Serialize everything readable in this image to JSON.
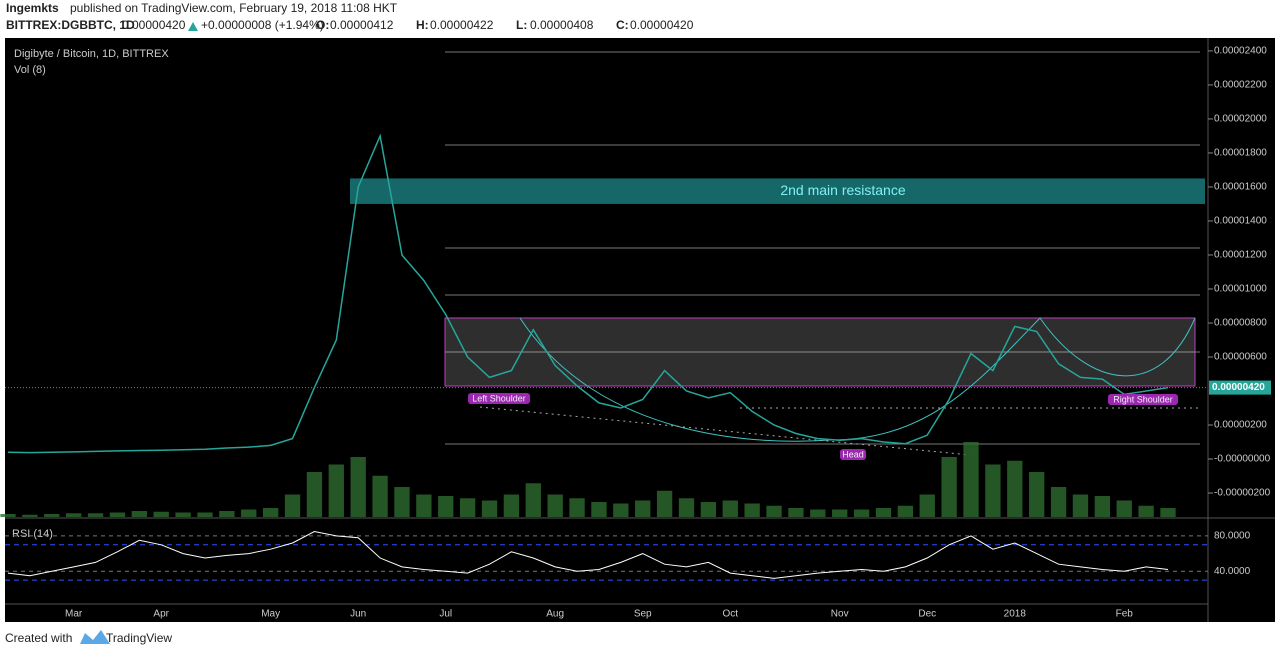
{
  "header": {
    "author": "Ingemkts",
    "published": "published on TradingView.com, February 19, 2018 11:08 HKT",
    "symbol": "BITTREX:DGBBTC, 1D",
    "last": "0.00000420",
    "change": "+0.00000008 (+1.94%)",
    "ohlc": [
      {
        "label": "O:",
        "value": "0.00000412"
      },
      {
        "label": "H:",
        "value": "0.00000422"
      },
      {
        "label": "L:",
        "value": "0.00000408"
      },
      {
        "label": "C:",
        "value": "0.00000420"
      }
    ]
  },
  "chart_data": {
    "type": "line",
    "title": "Digibyte / Bitcoin, 1D, BITTREX",
    "color": "#26a69a",
    "categories": [
      null,
      null,
      null,
      "Mar",
      null,
      null,
      null,
      "Apr",
      null,
      null,
      null,
      null,
      "May",
      null,
      null,
      null,
      "Jun",
      null,
      null,
      null,
      "Jul",
      null,
      null,
      null,
      null,
      "Aug",
      null,
      null,
      null,
      "Sep",
      null,
      null,
      null,
      "Oct",
      null,
      null,
      null,
      null,
      "Nov",
      null,
      null,
      null,
      "Dec",
      null,
      null,
      null,
      "2018",
      null,
      null,
      null,
      null,
      "Feb",
      null,
      null
    ],
    "values": [
      4e-07,
      3.8e-07,
      4e-07,
      4.2e-07,
      4.5e-07,
      4.8e-07,
      5e-07,
      5.2e-07,
      5.5e-07,
      5.8e-07,
      6.5e-07,
      7e-07,
      8e-07,
      1.2e-06,
      4.2e-06,
      7e-06,
      1.6e-05,
      1.9e-05,
      1.2e-05,
      1.05e-05,
      8.5e-06,
      6e-06,
      4.8e-06,
      5.2e-06,
      7.6e-06,
      5.5e-06,
      4.3e-06,
      3.3e-06,
      3e-06,
      3.5e-06,
      5.2e-06,
      4e-06,
      3.6e-06,
      3.9e-06,
      2.8e-06,
      2e-06,
      1.5e-06,
      1.2e-06,
      1.1e-06,
      1.2e-06,
      1e-06,
      9e-07,
      1.4e-06,
      3.5e-06,
      6.2e-06,
      5.2e-06,
      7.8e-06,
      7.5e-06,
      5.6e-06,
      4.8e-06,
      4.7e-06,
      3.8e-06,
      4e-06,
      4.2e-06
    ],
    "ylim": [
      -3.41e-06,
      2.476e-05
    ],
    "yticks": [
      {
        "value": -2e-06,
        "label": "-0.00000200"
      },
      {
        "value": 0,
        "label": "-0.00000000"
      },
      {
        "value": 2e-06,
        "label": "0.00000200"
      },
      {
        "value": 6e-06,
        "label": "0.00000600"
      },
      {
        "value": 8e-06,
        "label": "0.00000800"
      },
      {
        "value": 1e-05,
        "label": "0.00001000"
      },
      {
        "value": 1.2e-05,
        "label": "0.00001200"
      },
      {
        "value": 1.4e-05,
        "label": "0.00001400"
      },
      {
        "value": 1.6e-05,
        "label": "0.00001600"
      },
      {
        "value": 1.8e-05,
        "label": "0.00001800"
      },
      {
        "value": 2e-05,
        "label": "0.00002000"
      },
      {
        "value": 2.2e-05,
        "label": "0.00002200"
      },
      {
        "value": 2.4e-05,
        "label": "0.00002400"
      }
    ],
    "last_price": {
      "value": 4.2e-06,
      "label": "0.00000420"
    },
    "resistance": {
      "text": "2nd main resistance",
      "ylim": [
        1.5e-05,
        1.65e-05
      ]
    },
    "annotations": [
      "Left Shoulder",
      "Head",
      "Right Shoulder"
    ],
    "volume": {
      "name": "Vol (8)",
      "color": "#2e6b2e",
      "ylim": [
        0,
        100
      ],
      "values": [
        4,
        3,
        4,
        5,
        5,
        6,
        8,
        7,
        6,
        6,
        8,
        10,
        12,
        30,
        60,
        70,
        80,
        55,
        40,
        30,
        28,
        25,
        22,
        30,
        45,
        30,
        25,
        20,
        18,
        22,
        35,
        25,
        20,
        22,
        18,
        15,
        12,
        10,
        10,
        10,
        12,
        15,
        30,
        80,
        100,
        70,
        75,
        60,
        40,
        30,
        28,
        22,
        15,
        12
      ]
    },
    "rsi": {
      "name": "RSI (14)",
      "color": "#ffffff",
      "ylim": [
        3,
        98
      ],
      "bands": [
        70,
        30
      ],
      "yticks": [
        {
          "value": 40,
          "label": "40.0000"
        },
        {
          "value": 80,
          "label": "80.0000"
        }
      ],
      "values": [
        38,
        35,
        40,
        45,
        50,
        62,
        75,
        70,
        60,
        55,
        58,
        60,
        65,
        72,
        85,
        80,
        78,
        55,
        45,
        42,
        40,
        38,
        48,
        62,
        55,
        45,
        40,
        42,
        50,
        60,
        48,
        45,
        50,
        38,
        35,
        32,
        35,
        38,
        40,
        42,
        40,
        45,
        55,
        70,
        80,
        65,
        72,
        60,
        48,
        45,
        42,
        40,
        45,
        42
      ]
    }
  },
  "footer": {
    "created": "Created with",
    "brand": "TradingView"
  }
}
